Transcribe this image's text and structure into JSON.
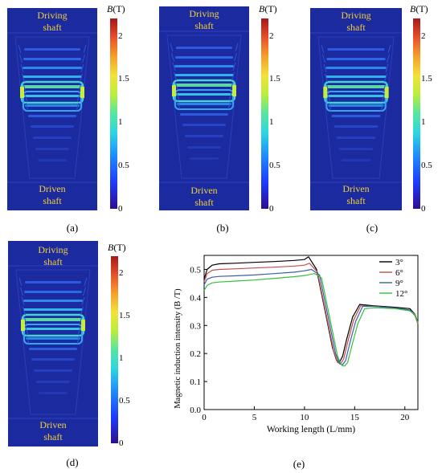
{
  "panels": [
    {
      "label": "(a)",
      "top_text": [
        "Driving",
        "shaft"
      ],
      "bottom_text": [
        "Driven",
        "shaft"
      ]
    },
    {
      "label": "(b)",
      "top_text": [
        "Driving",
        "shaft"
      ],
      "bottom_text": [
        "Driven",
        "shaft"
      ]
    },
    {
      "label": "(c)",
      "top_text": [
        "Driving",
        "shaft"
      ],
      "bottom_text": [
        "Driven",
        "shaft"
      ]
    },
    {
      "label": "(d)",
      "top_text": [
        "Driving",
        "shaft"
      ],
      "bottom_text": [
        "Driven",
        "shaft"
      ]
    }
  ],
  "colorbar": {
    "symbol": "B",
    "unit": "(T)",
    "ticks": [
      "2",
      "1.5",
      "1",
      "0.5",
      "0"
    ],
    "range": [
      0,
      2.2
    ]
  },
  "chart_label": "(e)",
  "chart_data": {
    "type": "line",
    "title": "",
    "xlabel": "Working length (L/mm)",
    "ylabel": "Magnetic induction intensity (B /T)",
    "xlim": [
      0,
      21.3
    ],
    "ylim": [
      0,
      0.55
    ],
    "xticks": [
      "0",
      "5",
      "10",
      "15",
      "20"
    ],
    "yticks": [
      "0.0",
      "0.1",
      "0.2",
      "0.3",
      "0.4",
      "0.5"
    ],
    "legend": "top-right",
    "grid": false,
    "series": [
      {
        "name": "3°",
        "color": "#000000",
        "x": [
          0,
          0.3,
          0.8,
          1.5,
          3,
          5,
          7,
          9,
          10,
          10.4,
          11.2,
          12,
          12.8,
          13.2,
          13.5,
          13.8,
          14.2,
          14.8,
          15.5,
          17,
          19,
          20.5,
          21,
          21.3
        ],
        "y": [
          0.465,
          0.5,
          0.515,
          0.52,
          0.522,
          0.525,
          0.528,
          0.532,
          0.535,
          0.545,
          0.5,
          0.36,
          0.22,
          0.175,
          0.17,
          0.19,
          0.25,
          0.33,
          0.375,
          0.37,
          0.365,
          0.36,
          0.34,
          0.31
        ]
      },
      {
        "name": "6°",
        "color": "#c0504d",
        "x": [
          0,
          0.3,
          0.8,
          1.5,
          3,
          5,
          7,
          9,
          10,
          10.5,
          11.3,
          12.1,
          12.9,
          13.3,
          13.6,
          13.9,
          14.3,
          14.9,
          15.6,
          17,
          19,
          20.5,
          21,
          21.3
        ],
        "y": [
          0.455,
          0.485,
          0.497,
          0.5,
          0.502,
          0.505,
          0.508,
          0.512,
          0.515,
          0.522,
          0.49,
          0.35,
          0.21,
          0.168,
          0.163,
          0.18,
          0.24,
          0.32,
          0.37,
          0.368,
          0.362,
          0.355,
          0.335,
          0.305
        ]
      },
      {
        "name": "9°",
        "color": "#3d5ea8",
        "x": [
          0,
          0.3,
          0.8,
          1.5,
          3,
          5,
          7,
          9,
          10,
          10.7,
          11.5,
          12.3,
          13.1,
          13.5,
          13.8,
          14.1,
          14.5,
          15.1,
          15.8,
          17,
          19,
          20.5,
          21,
          21.3
        ],
        "y": [
          0.445,
          0.465,
          0.472,
          0.475,
          0.477,
          0.48,
          0.485,
          0.49,
          0.495,
          0.5,
          0.48,
          0.34,
          0.2,
          0.163,
          0.16,
          0.175,
          0.235,
          0.315,
          0.368,
          0.368,
          0.362,
          0.355,
          0.34,
          0.31
        ]
      },
      {
        "name": "12°",
        "color": "#33c23a",
        "x": [
          0,
          0.3,
          0.8,
          1.5,
          3,
          5,
          7,
          9,
          10,
          11,
          11.7,
          12.5,
          13.3,
          13.7,
          14,
          14.3,
          14.7,
          15.3,
          16,
          17,
          19,
          20.5,
          21,
          21.3
        ],
        "y": [
          0.425,
          0.443,
          0.452,
          0.455,
          0.458,
          0.462,
          0.468,
          0.474,
          0.478,
          0.485,
          0.47,
          0.33,
          0.19,
          0.158,
          0.155,
          0.168,
          0.225,
          0.305,
          0.36,
          0.363,
          0.36,
          0.352,
          0.338,
          0.31
        ]
      }
    ]
  }
}
